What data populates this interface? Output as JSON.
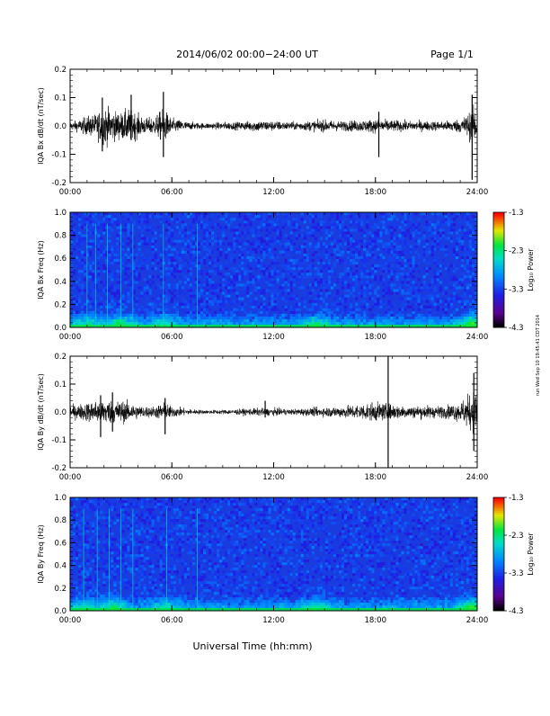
{
  "header": {
    "title": "2014/06/02  00:00−24:00 UT",
    "page": "Page 1/1"
  },
  "footer": {
    "xlabel": "Universal Time (hh:mm)"
  },
  "side_stamp": "run Wed Sep 10 19:45:41 CDT 2014",
  "colors": {
    "trace": "#000000",
    "background_blue": "#1a3cdc"
  },
  "chart_data": [
    {
      "type": "line",
      "id": "bx_line",
      "ylabel": "IQA Bx dB/dt (nT/sec)",
      "x_ticks": [
        "00:00",
        "06:00",
        "12:00",
        "18:00",
        "24:00"
      ],
      "y_ticks": [
        "-0.2",
        "-0.1",
        "0.0",
        "0.1",
        "0.2"
      ],
      "xlim": [
        0,
        24
      ],
      "ylim": [
        -0.2,
        0.2
      ],
      "envelope": [
        {
          "t": 0.0,
          "a": 0.02
        },
        {
          "t": 0.5,
          "a": 0.03
        },
        {
          "t": 1.0,
          "a": 0.05
        },
        {
          "t": 1.5,
          "a": 0.06
        },
        {
          "t": 2.0,
          "a": 0.1
        },
        {
          "t": 2.5,
          "a": 0.08
        },
        {
          "t": 3.0,
          "a": 0.07
        },
        {
          "t": 3.5,
          "a": 0.09
        },
        {
          "t": 4.0,
          "a": 0.06
        },
        {
          "t": 4.5,
          "a": 0.04
        },
        {
          "t": 5.0,
          "a": 0.05
        },
        {
          "t": 5.5,
          "a": 0.09
        },
        {
          "t": 6.0,
          "a": 0.04
        },
        {
          "t": 7.0,
          "a": 0.02
        },
        {
          "t": 8.0,
          "a": 0.015
        },
        {
          "t": 9.0,
          "a": 0.02
        },
        {
          "t": 10.0,
          "a": 0.02
        },
        {
          "t": 11.0,
          "a": 0.03
        },
        {
          "t": 12.0,
          "a": 0.025
        },
        {
          "t": 13.0,
          "a": 0.02
        },
        {
          "t": 14.0,
          "a": 0.025
        },
        {
          "t": 15.0,
          "a": 0.03
        },
        {
          "t": 16.0,
          "a": 0.025
        },
        {
          "t": 17.0,
          "a": 0.03
        },
        {
          "t": 18.0,
          "a": 0.035
        },
        {
          "t": 19.0,
          "a": 0.03
        },
        {
          "t": 20.0,
          "a": 0.025
        },
        {
          "t": 21.0,
          "a": 0.025
        },
        {
          "t": 22.0,
          "a": 0.025
        },
        {
          "t": 23.0,
          "a": 0.035
        },
        {
          "t": 23.5,
          "a": 0.07
        },
        {
          "t": 24.0,
          "a": 0.1
        }
      ],
      "spikes": [
        {
          "t": 1.9,
          "min": -0.09,
          "max": 0.1
        },
        {
          "t": 3.6,
          "min": -0.05,
          "max": 0.11
        },
        {
          "t": 5.5,
          "min": -0.11,
          "max": 0.12
        },
        {
          "t": 18.2,
          "min": -0.11,
          "max": 0.05
        },
        {
          "t": 23.7,
          "min": -0.19,
          "max": 0.11
        }
      ]
    },
    {
      "type": "heatmap",
      "id": "bx_spec",
      "ylabel": "IQA Bx Freq (Hz)",
      "x_ticks": [
        "00:00",
        "06:00",
        "12:00",
        "18:00",
        "24:00"
      ],
      "y_ticks": [
        "0.0",
        "0.2",
        "0.4",
        "0.6",
        "0.8",
        "1.0"
      ],
      "xlim": [
        0,
        24
      ],
      "ylim": [
        0.0,
        1.0
      ],
      "colorbar": {
        "label": "Log₁₀ Power",
        "ticks": [
          "-1.3",
          "-2.3",
          "-3.3",
          "-4.3"
        ],
        "range": [
          -4.3,
          -1.3
        ]
      },
      "vertical_lines_hours": [
        1.0,
        1.5,
        2.2,
        3.0,
        3.7,
        5.5,
        7.5
      ],
      "low_freq_enhancement": [
        {
          "t": 1.0,
          "level": 0.6
        },
        {
          "t": 3.0,
          "level": 0.7
        },
        {
          "t": 5.5,
          "level": 0.5
        },
        {
          "t": 14.5,
          "level": 0.6
        },
        {
          "t": 23.7,
          "level": 0.9
        }
      ]
    },
    {
      "type": "line",
      "id": "by_line",
      "ylabel": "IQA By dB/dt (nT/sec)",
      "x_ticks": [
        "00:00",
        "06:00",
        "12:00",
        "18:00",
        "24:00"
      ],
      "y_ticks": [
        "-0.2",
        "-0.1",
        "0.0",
        "0.1",
        "0.2"
      ],
      "xlim": [
        0,
        24
      ],
      "ylim": [
        -0.2,
        0.2
      ],
      "envelope": [
        {
          "t": 0.0,
          "a": 0.03
        },
        {
          "t": 0.5,
          "a": 0.04
        },
        {
          "t": 1.0,
          "a": 0.05
        },
        {
          "t": 1.5,
          "a": 0.06
        },
        {
          "t": 2.0,
          "a": 0.07
        },
        {
          "t": 2.5,
          "a": 0.06
        },
        {
          "t": 3.0,
          "a": 0.06
        },
        {
          "t": 3.5,
          "a": 0.05
        },
        {
          "t": 4.0,
          "a": 0.035
        },
        {
          "t": 4.5,
          "a": 0.03
        },
        {
          "t": 5.0,
          "a": 0.03
        },
        {
          "t": 5.5,
          "a": 0.05
        },
        {
          "t": 6.0,
          "a": 0.03
        },
        {
          "t": 7.0,
          "a": 0.015
        },
        {
          "t": 8.0,
          "a": 0.01
        },
        {
          "t": 9.0,
          "a": 0.012
        },
        {
          "t": 10.0,
          "a": 0.015
        },
        {
          "t": 11.0,
          "a": 0.02
        },
        {
          "t": 12.0,
          "a": 0.02
        },
        {
          "t": 13.0,
          "a": 0.015
        },
        {
          "t": 14.0,
          "a": 0.02
        },
        {
          "t": 15.0,
          "a": 0.025
        },
        {
          "t": 16.0,
          "a": 0.03
        },
        {
          "t": 17.0,
          "a": 0.04
        },
        {
          "t": 18.0,
          "a": 0.05
        },
        {
          "t": 19.0,
          "a": 0.04
        },
        {
          "t": 20.0,
          "a": 0.03
        },
        {
          "t": 21.0,
          "a": 0.035
        },
        {
          "t": 22.0,
          "a": 0.03
        },
        {
          "t": 23.0,
          "a": 0.05
        },
        {
          "t": 23.5,
          "a": 0.09
        },
        {
          "t": 24.0,
          "a": 0.12
        }
      ],
      "spikes": [
        {
          "t": 1.8,
          "min": -0.09,
          "max": 0.06
        },
        {
          "t": 2.5,
          "min": -0.07,
          "max": 0.07
        },
        {
          "t": 5.6,
          "min": -0.08,
          "max": 0.05
        },
        {
          "t": 11.5,
          "min": -0.02,
          "max": 0.04
        },
        {
          "t": 18.75,
          "min": -0.2,
          "max": 0.2
        },
        {
          "t": 23.8,
          "min": -0.14,
          "max": 0.14
        }
      ]
    },
    {
      "type": "heatmap",
      "id": "by_spec",
      "ylabel": "IQA By Freq (Hz)",
      "x_ticks": [
        "00:00",
        "06:00",
        "12:00",
        "18:00",
        "24:00"
      ],
      "y_ticks": [
        "0.0",
        "0.2",
        "0.4",
        "0.6",
        "0.8",
        "1.0"
      ],
      "xlim": [
        0,
        24
      ],
      "ylim": [
        0.0,
        1.0
      ],
      "colorbar": {
        "label": "Log₁₀ Power",
        "ticks": [
          "-1.3",
          "-2.3",
          "-3.3",
          "-4.3"
        ],
        "range": [
          -4.3,
          -1.3
        ]
      },
      "vertical_lines_hours": [
        0.8,
        1.6,
        2.3,
        3.0,
        3.7,
        5.7,
        7.5
      ],
      "low_freq_enhancement": [
        {
          "t": 1.0,
          "level": 0.6
        },
        {
          "t": 2.5,
          "level": 0.7
        },
        {
          "t": 5.7,
          "level": 0.5
        },
        {
          "t": 14.5,
          "level": 0.6
        },
        {
          "t": 23.7,
          "level": 0.9
        }
      ]
    }
  ]
}
